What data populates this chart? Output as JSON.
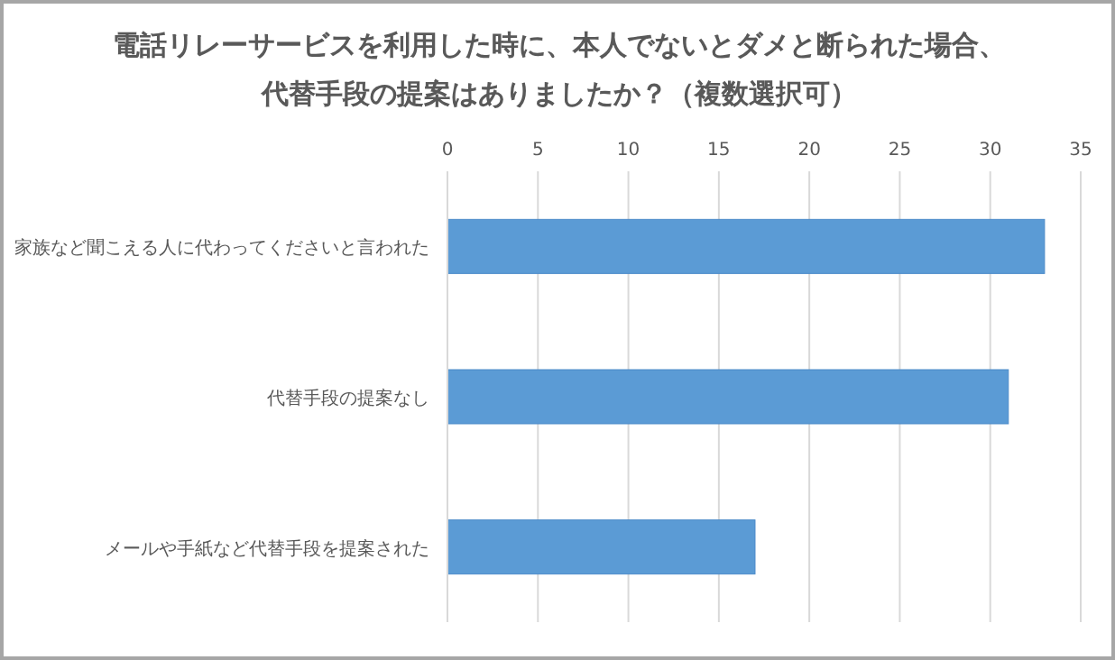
{
  "chart_data": {
    "type": "bar",
    "orientation": "horizontal",
    "title": "電話リレーサービスを利用した時に、本人でないとダメと断られた場合、代替手段の提案はありましたか？（複数選択可）",
    "categories": [
      "家族など聞こえる人に代わってくださいと言われた",
      "代替手段の提案なし",
      "メールや手紙など代替手段を提案された"
    ],
    "values": [
      33,
      31,
      17
    ],
    "color": "#5b9bd5",
    "xlim": [
      0,
      35
    ],
    "xticks": [
      0,
      5,
      10,
      15,
      20,
      25,
      30,
      35
    ],
    "grid": "x"
  }
}
